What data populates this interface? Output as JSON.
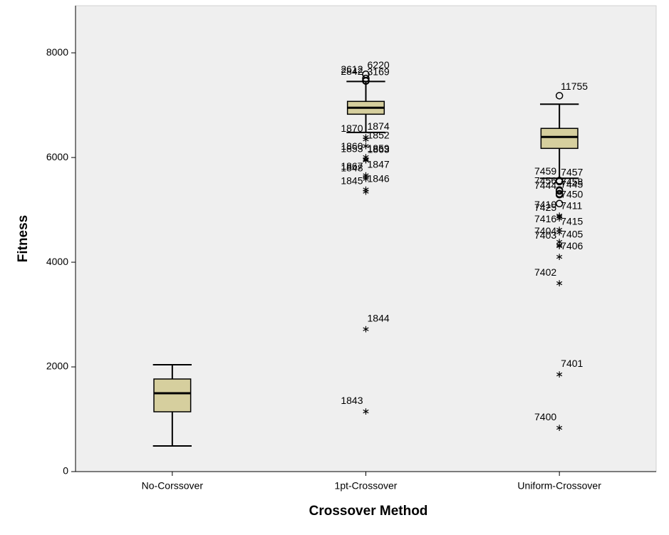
{
  "chart_data": {
    "type": "box",
    "x_label": "Crossover Method",
    "y_label": "Fitness",
    "categories": [
      "No-Corssover",
      "1pt-Crossover",
      "Uniform-Crossover"
    ],
    "color": "#d6cf9e",
    "ylim": [
      0,
      8900
    ],
    "yticks": [
      0,
      2000,
      4000,
      6000,
      8000
    ],
    "boxes": [
      {
        "whislo": 490,
        "q1": 1143,
        "med": 1497,
        "q3": 1769,
        "whishi": 2041,
        "outliers": []
      },
      {
        "whislo": 6480,
        "q1": 6827,
        "med": 6950,
        "q3": 7072,
        "whishi": 7453,
        "outliers": [
          {
            "label": "6220",
            "value": 7590,
            "marker": "circle"
          },
          {
            "label": "2612",
            "value": 7510,
            "marker": "circle"
          },
          {
            "label": "3169",
            "value": 7460,
            "marker": "circle"
          },
          {
            "label": "2842",
            "value": 7470,
            "marker": "circle"
          },
          {
            "label": "1874",
            "value": 6420,
            "marker": "star"
          },
          {
            "label": "1870",
            "value": 6380,
            "marker": "star"
          },
          {
            "label": "1852",
            "value": 6250,
            "marker": "star"
          },
          {
            "label": "1860",
            "value": 6040,
            "marker": "star"
          },
          {
            "label": "1863",
            "value": 5980,
            "marker": "star"
          },
          {
            "label": "1853",
            "value": 5990,
            "marker": "star"
          },
          {
            "label": "1859",
            "value": 6000,
            "marker": "star"
          },
          {
            "label": "1867",
            "value": 5660,
            "marker": "star"
          },
          {
            "label": "1847",
            "value": 5690,
            "marker": "star"
          },
          {
            "label": "1848",
            "value": 5620,
            "marker": "star"
          },
          {
            "label": "1846",
            "value": 5420,
            "marker": "star"
          },
          {
            "label": "1845",
            "value": 5380,
            "marker": "star"
          },
          {
            "label": "1844",
            "value": 2750,
            "marker": "star"
          },
          {
            "label": "1843",
            "value": 1180,
            "marker": "star"
          }
        ]
      },
      {
        "whislo": 5603,
        "q1": 6174,
        "med": 6392,
        "q3": 6556,
        "whishi": 7018,
        "outliers": [
          {
            "label": "11755",
            "value": 7181,
            "marker": "circle"
          },
          {
            "label": "7459",
            "value": 5560,
            "marker": "circle"
          },
          {
            "label": "7457",
            "value": 5540,
            "marker": "circle"
          },
          {
            "label": "7456",
            "value": 5380,
            "marker": "circle"
          },
          {
            "label": "7458",
            "value": 5360,
            "marker": "circle"
          },
          {
            "label": "7444",
            "value": 5290,
            "marker": "circle"
          },
          {
            "label": "7445",
            "value": 5310,
            "marker": "circle"
          },
          {
            "label": "7410",
            "value": 4920,
            "marker": "star"
          },
          {
            "label": "7450",
            "value": 5120,
            "marker": "circle"
          },
          {
            "label": "7425",
            "value": 4870,
            "marker": "star"
          },
          {
            "label": "7411",
            "value": 4900,
            "marker": "star"
          },
          {
            "label": "7416",
            "value": 4650,
            "marker": "star"
          },
          {
            "label": "7415",
            "value": 4600,
            "marker": "star"
          },
          {
            "label": "7404",
            "value": 4420,
            "marker": "star"
          },
          {
            "label": "7405",
            "value": 4360,
            "marker": "star"
          },
          {
            "label": "7403",
            "value": 4340,
            "marker": "star"
          },
          {
            "label": "7406",
            "value": 4130,
            "marker": "star"
          },
          {
            "label": "7402",
            "value": 3631,
            "marker": "star"
          },
          {
            "label": "7401",
            "value": 1890,
            "marker": "star"
          },
          {
            "label": "7400",
            "value": 870,
            "marker": "star"
          }
        ]
      }
    ]
  }
}
